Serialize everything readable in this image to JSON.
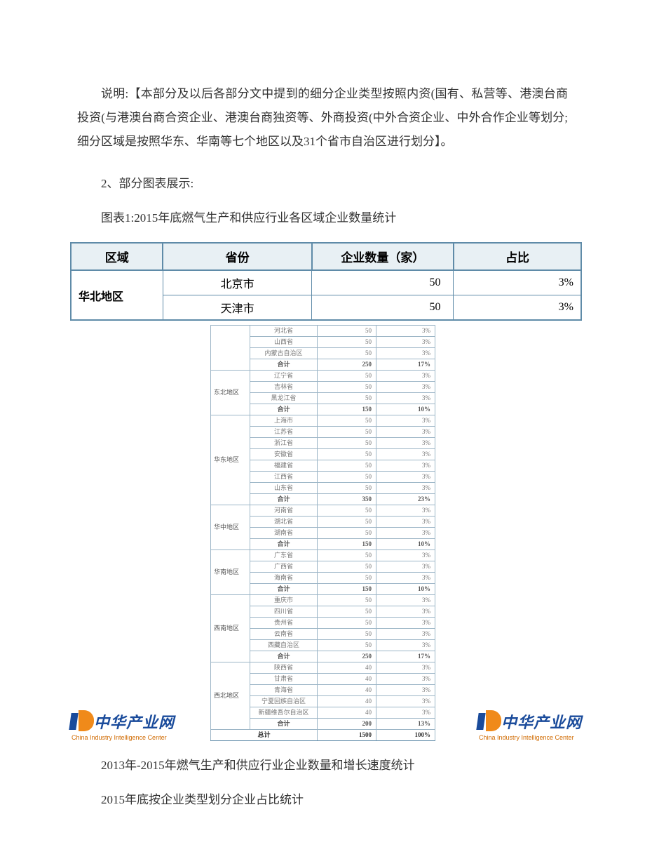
{
  "paragraphs": {
    "p1": "说明:【本部分及以后各部分文中提到的细分企业类型按照内资(国有、私营等、港澳台商投资(与港澳台商合资企业、港澳台商独资等、外商投资(中外合资企业、中外合作企业等划分;细分区域是按照华东、华南等七个地区以及31个省市自治区进行划分】。",
    "p2": "2、部分图表展示:",
    "p3": "图表1:2015年底燃气生产和供应行业各区域企业数量统计",
    "p4": "2013年-2015年燃气生产和供应行业企业数量和增长速度统计",
    "p5": "2015年底按企业类型划分企业占比统计"
  },
  "main_table": {
    "headers": [
      "区域",
      "省份",
      "企业数量（家）",
      "占比"
    ],
    "col_widths": [
      "130px",
      "210px",
      "200px",
      "180px"
    ],
    "header_bg": "#e8f0f4",
    "border_color": "#5f8ba8",
    "region": "华北地区",
    "rows": [
      {
        "prov": "北京市",
        "count": "50",
        "pct": "3%"
      },
      {
        "prov": "天津市",
        "count": "50",
        "pct": "3%"
      }
    ]
  },
  "small_table": {
    "col_widths": [
      "56px",
      "96px",
      "84px",
      "84px"
    ],
    "border_color": "#9db6c7",
    "groups": [
      {
        "region": "",
        "rows": [
          {
            "p": "河北省",
            "n": "50",
            "r": "3%"
          },
          {
            "p": "山西省",
            "n": "50",
            "r": "3%"
          },
          {
            "p": "内蒙古自治区",
            "n": "50",
            "r": "3%"
          }
        ],
        "sum": {
          "p": "合计",
          "n": "250",
          "r": "17%"
        }
      },
      {
        "region": "东北地区",
        "rows": [
          {
            "p": "辽宁省",
            "n": "50",
            "r": "3%"
          },
          {
            "p": "吉林省",
            "n": "50",
            "r": "3%"
          },
          {
            "p": "黑龙江省",
            "n": "50",
            "r": "3%"
          }
        ],
        "sum": {
          "p": "合计",
          "n": "150",
          "r": "10%"
        }
      },
      {
        "region": "华东地区",
        "rows": [
          {
            "p": "上海市",
            "n": "50",
            "r": "3%"
          },
          {
            "p": "江苏省",
            "n": "50",
            "r": "3%"
          },
          {
            "p": "浙江省",
            "n": "50",
            "r": "3%"
          },
          {
            "p": "安徽省",
            "n": "50",
            "r": "3%"
          },
          {
            "p": "福建省",
            "n": "50",
            "r": "3%"
          },
          {
            "p": "江西省",
            "n": "50",
            "r": "3%"
          },
          {
            "p": "山东省",
            "n": "50",
            "r": "3%"
          }
        ],
        "sum": {
          "p": "合计",
          "n": "350",
          "r": "23%"
        }
      },
      {
        "region": "华中地区",
        "rows": [
          {
            "p": "河南省",
            "n": "50",
            "r": "3%"
          },
          {
            "p": "湖北省",
            "n": "50",
            "r": "3%"
          },
          {
            "p": "湖南省",
            "n": "50",
            "r": "3%"
          }
        ],
        "sum": {
          "p": "合计",
          "n": "150",
          "r": "10%"
        }
      },
      {
        "region": "华南地区",
        "rows": [
          {
            "p": "广东省",
            "n": "50",
            "r": "3%"
          },
          {
            "p": "广西省",
            "n": "50",
            "r": "3%"
          },
          {
            "p": "海南省",
            "n": "50",
            "r": "3%"
          }
        ],
        "sum": {
          "p": "合计",
          "n": "150",
          "r": "10%"
        }
      },
      {
        "region": "西南地区",
        "rows": [
          {
            "p": "重庆市",
            "n": "50",
            "r": "3%"
          },
          {
            "p": "四川省",
            "n": "50",
            "r": "3%"
          },
          {
            "p": "贵州省",
            "n": "50",
            "r": "3%"
          },
          {
            "p": "云南省",
            "n": "50",
            "r": "3%"
          },
          {
            "p": "西藏自治区",
            "n": "50",
            "r": "3%"
          }
        ],
        "sum": {
          "p": "合计",
          "n": "250",
          "r": "17%"
        }
      },
      {
        "region": "西北地区",
        "rows": [
          {
            "p": "陕西省",
            "n": "40",
            "r": "3%"
          },
          {
            "p": "甘肃省",
            "n": "40",
            "r": "3%"
          },
          {
            "p": "青海省",
            "n": "40",
            "r": "3%"
          },
          {
            "p": "宁夏回族自治区",
            "n": "40",
            "r": "3%"
          },
          {
            "p": "新疆维吾尔自治区",
            "n": "40",
            "r": "3%"
          }
        ],
        "sum": {
          "p": "合计",
          "n": "200",
          "r": "13%"
        }
      }
    ],
    "total": {
      "label": "总计",
      "n": "1500",
      "r": "100%"
    }
  },
  "logo": {
    "text": "中华产业网",
    "sub": "China Industry Intelligence Center"
  }
}
